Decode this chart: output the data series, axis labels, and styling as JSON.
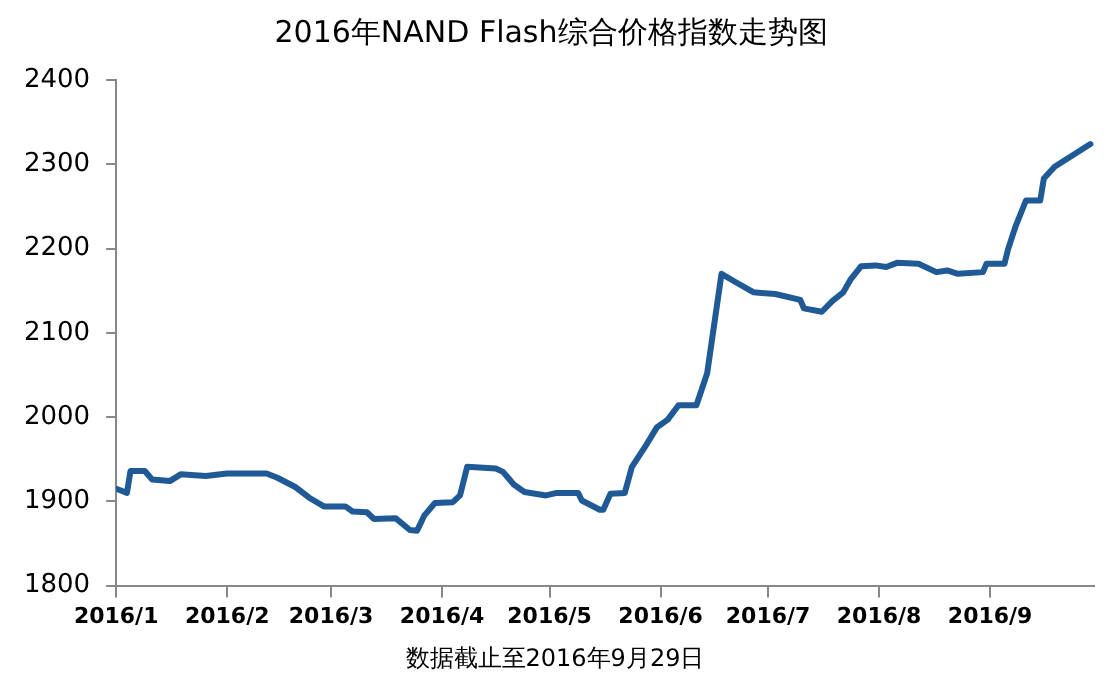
{
  "chart_data": {
    "type": "line",
    "title": "2016年NAND Flash综合价格指数走势图",
    "annotations": [
      "数据截止至2016年9月29日"
    ],
    "x": [
      "2016-01-01",
      "2016-01-04",
      "2016-01-05",
      "2016-01-09",
      "2016-01-11",
      "2016-01-16",
      "2016-01-19",
      "2016-01-26",
      "2016-02-01",
      "2016-02-12",
      "2016-02-15",
      "2016-02-20",
      "2016-02-24",
      "2016-02-28",
      "2016-03-05",
      "2016-03-07",
      "2016-03-11",
      "2016-03-13",
      "2016-03-19",
      "2016-03-23",
      "2016-03-25",
      "2016-03-27",
      "2016-03-30",
      "2016-04-04",
      "2016-04-06",
      "2016-04-08",
      "2016-04-16",
      "2016-04-18",
      "2016-04-21",
      "2016-04-24",
      "2016-04-30",
      "2016-05-03",
      "2016-05-09",
      "2016-05-10",
      "2016-05-15",
      "2016-05-16",
      "2016-05-18",
      "2016-05-22",
      "2016-05-24",
      "2016-05-28",
      "2016-05-31",
      "2016-06-03",
      "2016-06-06",
      "2016-06-11",
      "2016-06-14",
      "2016-06-18",
      "2016-06-22",
      "2016-06-27",
      "2016-07-03",
      "2016-07-10",
      "2016-07-11",
      "2016-07-16",
      "2016-07-19",
      "2016-07-22",
      "2016-07-24",
      "2016-07-27",
      "2016-07-31",
      "2016-08-03",
      "2016-08-06",
      "2016-08-12",
      "2016-08-17",
      "2016-08-20",
      "2016-08-23",
      "2016-08-30",
      "2016-08-31",
      "2016-09-05",
      "2016-09-06",
      "2016-09-08",
      "2016-09-11",
      "2016-09-15",
      "2016-09-16",
      "2016-09-19",
      "2016-09-29"
    ],
    "series": [
      {
        "color": "#1f5a96",
        "values": [
          1915,
          1910,
          1936,
          1936,
          1926,
          1924,
          1932,
          1930,
          1933,
          1933,
          1928,
          1917,
          1904,
          1894,
          1894,
          1888,
          1887,
          1879,
          1880,
          1866,
          1865,
          1883,
          1898,
          1899,
          1907,
          1941,
          1939,
          1935,
          1920,
          1911,
          1907,
          1910,
          1910,
          1901,
          1890,
          1890,
          1909,
          1910,
          1941,
          1967,
          1988,
          1997,
          2014,
          2014,
          2052,
          2170,
          2160,
          2148,
          2146,
          2139,
          2129,
          2125,
          2138,
          2148,
          2163,
          2179,
          2180,
          2178,
          2183,
          2182,
          2172,
          2174,
          2170,
          2172,
          2182,
          2182,
          2199,
          2225,
          2257,
          2257,
          2283,
          2297,
          2324
        ]
      }
    ],
    "xlim": [
      "2016-01-01",
      "2016-09-30"
    ],
    "xticks": [
      {
        "value": "2016-01-01",
        "label": "2016/1"
      },
      {
        "value": "2016-02-01",
        "label": "2016/2"
      },
      {
        "value": "2016-03-01",
        "label": "2016/3"
      },
      {
        "value": "2016-04-01",
        "label": "2016/4"
      },
      {
        "value": "2016-05-01",
        "label": "2016/5"
      },
      {
        "value": "2016-06-01",
        "label": "2016/6"
      },
      {
        "value": "2016-07-01",
        "label": "2016/7"
      },
      {
        "value": "2016-08-01",
        "label": "2016/8"
      },
      {
        "value": "2016-09-01",
        "label": "2016/9"
      }
    ],
    "ylim": [
      1800,
      2400
    ],
    "yticks": [
      1800,
      1900,
      2000,
      2100,
      2200,
      2300,
      2400
    ],
    "grid": false,
    "legend": false,
    "marker": "none",
    "line_style": "solid"
  }
}
